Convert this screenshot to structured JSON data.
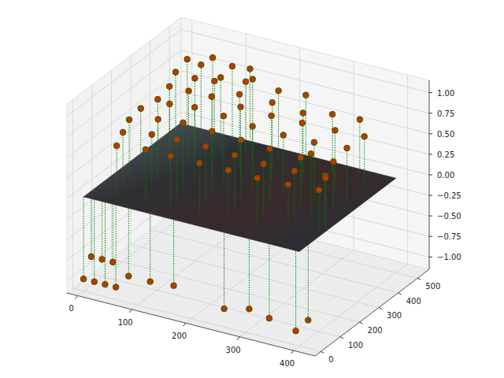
{
  "chart_data": {
    "type": "scatter3d",
    "xlim": [
      -20,
      440
    ],
    "xticks": [
      0,
      100,
      200,
      300,
      400
    ],
    "ylim": [
      -30,
      560
    ],
    "yticks": [
      0,
      100,
      200,
      300,
      400,
      500
    ],
    "zlim": [
      -1.15,
      1.15
    ],
    "zticks": [
      {
        "value": -1,
        "label": "−1.00"
      },
      {
        "value": -0.75,
        "label": "−0.75"
      },
      {
        "value": -0.5,
        "label": "−0.50"
      },
      {
        "value": -0.25,
        "label": "−0.25"
      },
      {
        "value": 0,
        "label": "0.00"
      },
      {
        "value": 0.25,
        "label": "0.25"
      },
      {
        "value": 0.5,
        "label": "0.50"
      },
      {
        "value": 0.75,
        "label": "0.75"
      },
      {
        "value": 1,
        "label": "1.00"
      }
    ],
    "grid": true,
    "color": "#c83200",
    "marker": "o",
    "line_style": "dotted",
    "surface": {
      "x": [
        0,
        400
      ],
      "y": [
        0,
        500
      ],
      "z": 0
    },
    "x": [
      20,
      60,
      100,
      140,
      20,
      60,
      100,
      150,
      200,
      240,
      30,
      70,
      110,
      160,
      210,
      260,
      300,
      340,
      30,
      80,
      130,
      180,
      230,
      280,
      330,
      370,
      20,
      70,
      120,
      170,
      220,
      270,
      320,
      370,
      20,
      70,
      120,
      170,
      220,
      270,
      320,
      370,
      30,
      80,
      130,
      180,
      230,
      280,
      330,
      380,
      40,
      90,
      140,
      190,
      240,
      290,
      340,
      390,
      170,
      350,
      395,
      0,
      20,
      40,
      60,
      0,
      20,
      40,
      80,
      120,
      160,
      330,
      390,
      395,
      250,
      300
    ],
    "y": [
      480,
      500,
      490,
      470,
      420,
      440,
      430,
      420,
      450,
      480,
      360,
      380,
      370,
      360,
      390,
      410,
      450,
      480,
      300,
      320,
      300,
      310,
      330,
      350,
      380,
      420,
      240,
      250,
      240,
      250,
      260,
      280,
      300,
      330,
      180,
      190,
      180,
      190,
      200,
      210,
      230,
      260,
      120,
      130,
      120,
      130,
      140,
      150,
      170,
      190,
      60,
      70,
      60,
      70,
      80,
      90,
      110,
      130,
      400,
      200,
      150,
      0,
      0,
      0,
      0,
      40,
      40,
      40,
      10,
      10,
      20,
      40,
      10,
      60,
      30,
      20
    ],
    "z": [
      0.85,
      0.9,
      0.88,
      0.95,
      0.8,
      0.92,
      0.85,
      0.9,
      0.82,
      0.78,
      0.75,
      0.88,
      0.93,
      0.87,
      0.8,
      0.72,
      0.7,
      0.65,
      0.7,
      0.85,
      0.9,
      0.84,
      0.78,
      0.74,
      0.68,
      0.6,
      0.68,
      0.8,
      0.86,
      0.82,
      0.76,
      0.7,
      0.66,
      0.62,
      0.65,
      0.72,
      0.78,
      0.74,
      0.7,
      0.66,
      0.6,
      0.58,
      0.62,
      0.66,
      0.7,
      0.68,
      0.64,
      0.6,
      0.56,
      0.55,
      0.58,
      0.6,
      0.62,
      0.6,
      0.58,
      0.55,
      0.52,
      0.5,
      1.0,
      0.75,
      0.62,
      -1,
      -1,
      -1,
      -1,
      -0.8,
      -0.8,
      -0.8,
      -0.85,
      -0.85,
      -0.85,
      -1,
      -1,
      -0.95,
      -1,
      -0.9
    ]
  }
}
